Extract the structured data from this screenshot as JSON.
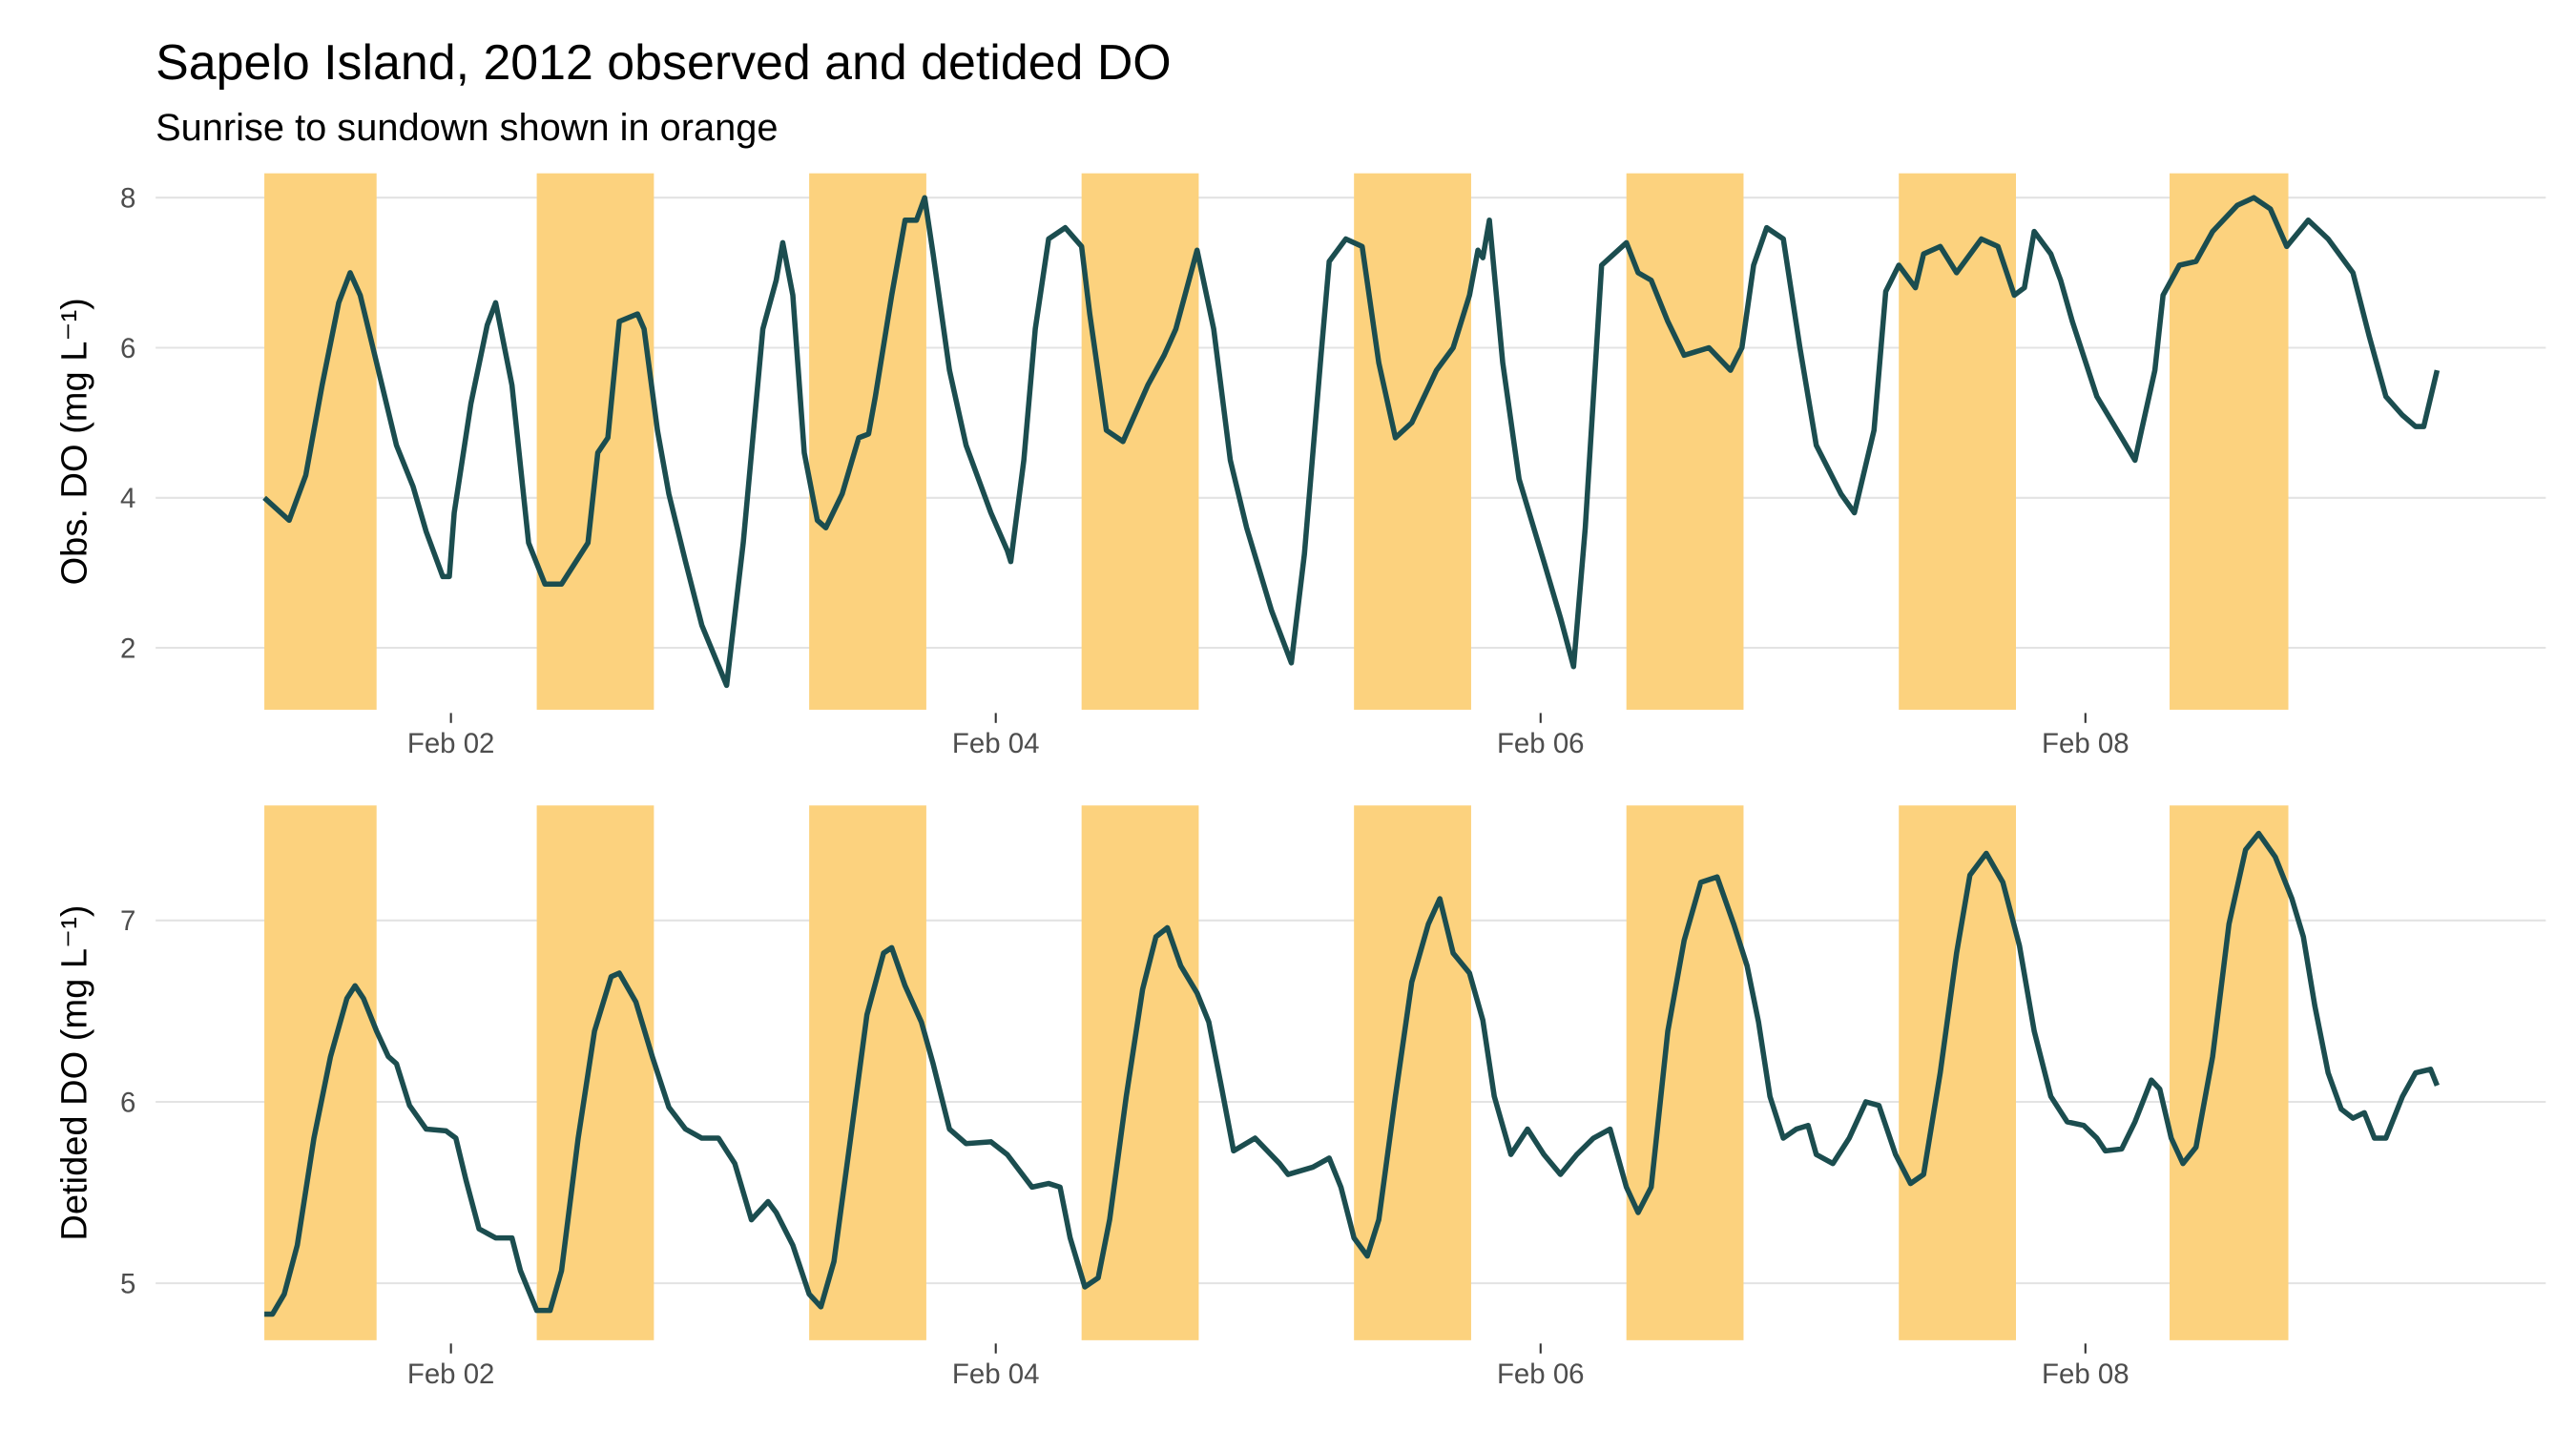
{
  "chart_data": [
    {
      "type": "line",
      "title": "Sapelo Island, 2012 observed and detided DO",
      "subtitle": "Sunrise to sundown shown in orange",
      "y_label": "Obs. DO (mg L⁻¹)",
      "xlim": [
        0.916,
        9.69
      ],
      "ylim": [
        1.175,
        8.325
      ],
      "xticks": [
        {
          "value": 2,
          "label": "Feb 02"
        },
        {
          "value": 4,
          "label": "Feb 04"
        },
        {
          "value": 6,
          "label": "Feb 06"
        },
        {
          "value": 8,
          "label": "Feb 08"
        }
      ],
      "yticks": [
        2,
        4,
        6,
        8
      ],
      "grid": true,
      "band_color": "#fcd27e",
      "bands": [
        [
          1.315,
          1.727
        ],
        [
          2.315,
          2.745
        ],
        [
          3.315,
          3.745
        ],
        [
          4.315,
          4.745
        ],
        [
          5.315,
          5.745
        ],
        [
          6.315,
          6.745
        ],
        [
          7.315,
          7.745
        ],
        [
          8.309,
          8.745
        ]
      ],
      "x": [
        1.315,
        1.406,
        1.467,
        1.527,
        1.588,
        1.63,
        1.667,
        1.727,
        1.8,
        1.861,
        1.909,
        1.97,
        1.994,
        2.012,
        2.073,
        2.133,
        2.164,
        2.224,
        2.285,
        2.345,
        2.406,
        2.503,
        2.539,
        2.576,
        2.618,
        2.685,
        2.709,
        2.758,
        2.8,
        2.861,
        2.921,
        3.012,
        3.073,
        3.145,
        3.194,
        3.218,
        3.255,
        3.297,
        3.345,
        3.376,
        3.436,
        3.497,
        3.533,
        3.558,
        3.618,
        3.667,
        3.709,
        3.739,
        3.77,
        3.83,
        3.891,
        3.982,
        4.042,
        4.055,
        4.103,
        4.145,
        4.194,
        4.255,
        4.315,
        4.345,
        4.406,
        4.467,
        4.558,
        4.618,
        4.661,
        4.739,
        4.8,
        4.861,
        4.921,
        5.012,
        5.085,
        5.133,
        5.194,
        5.224,
        5.285,
        5.345,
        5.406,
        5.467,
        5.527,
        5.618,
        5.679,
        5.739,
        5.77,
        5.788,
        5.812,
        5.861,
        5.921,
        6.012,
        6.073,
        6.121,
        6.164,
        6.224,
        6.315,
        6.358,
        6.406,
        6.467,
        6.527,
        6.618,
        6.697,
        6.739,
        6.782,
        6.83,
        6.891,
        6.952,
        7.012,
        7.103,
        7.152,
        7.224,
        7.267,
        7.315,
        7.376,
        7.406,
        7.467,
        7.527,
        7.618,
        7.679,
        7.739,
        7.776,
        7.812,
        7.873,
        7.909,
        7.952,
        8.042,
        8.133,
        8.182,
        8.206,
        8.255,
        8.285,
        8.345,
        8.406,
        8.467,
        8.558,
        8.618,
        8.679,
        8.739,
        8.818,
        8.891,
        8.982,
        9.042,
        9.103,
        9.164,
        9.212,
        9.242,
        9.291
      ],
      "series": [
        {
          "name": "Obs. DO",
          "color": "#1b4d4f",
          "values": [
            4.0,
            3.7,
            4.3,
            5.5,
            6.6,
            7.0,
            6.7,
            5.8,
            4.7,
            4.15,
            3.55,
            2.95,
            2.95,
            3.8,
            5.25,
            6.3,
            6.6,
            5.5,
            3.4,
            2.85,
            2.85,
            3.4,
            4.6,
            4.8,
            6.35,
            6.45,
            6.25,
            4.9,
            4.05,
            3.15,
            2.3,
            1.5,
            3.4,
            6.25,
            6.9,
            7.4,
            6.7,
            4.6,
            3.7,
            3.6,
            4.05,
            4.8,
            4.85,
            5.35,
            6.7,
            7.7,
            7.7,
            8.0,
            7.25,
            5.7,
            4.7,
            3.8,
            3.3,
            3.15,
            4.5,
            6.25,
            7.45,
            7.6,
            7.35,
            6.45,
            4.9,
            4.75,
            5.5,
            5.9,
            6.25,
            7.3,
            6.25,
            4.5,
            3.6,
            2.5,
            1.8,
            3.25,
            5.9,
            7.15,
            7.45,
            7.35,
            5.8,
            4.8,
            5.0,
            5.7,
            6.0,
            6.7,
            7.3,
            7.2,
            7.7,
            5.8,
            4.25,
            3.15,
            2.4,
            1.75,
            3.6,
            7.1,
            7.4,
            7.0,
            6.9,
            6.35,
            5.9,
            6.0,
            5.7,
            6.0,
            7.1,
            7.6,
            7.45,
            6.0,
            4.7,
            4.05,
            3.8,
            4.9,
            6.75,
            7.1,
            6.8,
            7.25,
            7.35,
            7.0,
            7.45,
            7.35,
            6.7,
            6.8,
            7.55,
            7.25,
            6.9,
            6.35,
            5.35,
            4.8,
            4.5,
            4.9,
            5.7,
            6.7,
            7.1,
            7.15,
            7.55,
            7.9,
            8.0,
            7.85,
            7.35,
            7.7,
            7.45,
            7.0,
            6.15,
            5.35,
            5.1,
            4.95,
            4.95,
            5.7
          ]
        }
      ]
    },
    {
      "type": "line",
      "y_label": "Detided DO (mg L⁻¹)",
      "xlim": [
        0.916,
        9.69
      ],
      "ylim": [
        4.686,
        7.634
      ],
      "xticks": [
        {
          "value": 2,
          "label": "Feb 02"
        },
        {
          "value": 4,
          "label": "Feb 04"
        },
        {
          "value": 6,
          "label": "Feb 06"
        },
        {
          "value": 8,
          "label": "Feb 08"
        }
      ],
      "yticks": [
        5,
        6,
        7
      ],
      "grid": true,
      "band_color": "#fcd27e",
      "bands": [
        [
          1.315,
          1.727
        ],
        [
          2.315,
          2.745
        ],
        [
          3.315,
          3.745
        ],
        [
          4.315,
          4.745
        ],
        [
          5.315,
          5.745
        ],
        [
          6.315,
          6.745
        ],
        [
          7.315,
          7.745
        ],
        [
          8.309,
          8.745
        ]
      ],
      "x": [
        1.315,
        1.345,
        1.388,
        1.436,
        1.497,
        1.558,
        1.618,
        1.648,
        1.679,
        1.727,
        1.77,
        1.8,
        1.848,
        1.909,
        1.982,
        2.018,
        2.055,
        2.103,
        2.164,
        2.224,
        2.255,
        2.315,
        2.364,
        2.406,
        2.467,
        2.527,
        2.588,
        2.618,
        2.679,
        2.739,
        2.8,
        2.861,
        2.921,
        2.982,
        3.042,
        3.103,
        3.164,
        3.194,
        3.255,
        3.315,
        3.358,
        3.406,
        3.467,
        3.527,
        3.588,
        3.618,
        3.667,
        3.727,
        3.77,
        3.83,
        3.891,
        3.982,
        4.042,
        4.133,
        4.194,
        4.236,
        4.273,
        4.327,
        4.376,
        4.418,
        4.479,
        4.539,
        4.588,
        4.63,
        4.679,
        4.739,
        4.782,
        4.83,
        4.873,
        4.952,
        5.042,
        5.073,
        5.164,
        5.224,
        5.267,
        5.315,
        5.364,
        5.406,
        5.467,
        5.527,
        5.588,
        5.63,
        5.679,
        5.739,
        5.788,
        5.83,
        5.891,
        5.952,
        6.012,
        6.073,
        6.133,
        6.194,
        6.255,
        6.315,
        6.358,
        6.406,
        6.467,
        6.527,
        6.588,
        6.648,
        6.709,
        6.758,
        6.8,
        6.842,
        6.891,
        6.939,
        6.982,
        7.012,
        7.073,
        7.133,
        7.194,
        7.242,
        7.303,
        7.358,
        7.406,
        7.467,
        7.527,
        7.576,
        7.636,
        7.697,
        7.758,
        7.812,
        7.873,
        7.933,
        7.994,
        8.042,
        8.073,
        8.133,
        8.182,
        8.242,
        8.273,
        8.315,
        8.358,
        8.406,
        8.467,
        8.527,
        8.588,
        8.636,
        8.697,
        8.758,
        8.8,
        8.842,
        8.891,
        8.939,
        8.982,
        9.024,
        9.061,
        9.103,
        9.164,
        9.212,
        9.267,
        9.291
      ],
      "series": [
        {
          "name": "Detided DO",
          "color": "#1b4d4f",
          "values": [
            4.83,
            4.83,
            4.94,
            5.21,
            5.8,
            6.25,
            6.57,
            6.64,
            6.57,
            6.39,
            6.25,
            6.21,
            5.98,
            5.85,
            5.84,
            5.8,
            5.57,
            5.3,
            5.25,
            5.25,
            5.07,
            4.85,
            4.85,
            5.07,
            5.8,
            6.39,
            6.69,
            6.71,
            6.55,
            6.25,
            5.97,
            5.85,
            5.8,
            5.8,
            5.66,
            5.35,
            5.45,
            5.39,
            5.21,
            4.94,
            4.87,
            5.12,
            5.8,
            6.48,
            6.82,
            6.85,
            6.64,
            6.44,
            6.21,
            5.85,
            5.77,
            5.78,
            5.71,
            5.53,
            5.55,
            5.53,
            5.25,
            4.98,
            5.03,
            5.35,
            6.03,
            6.62,
            6.91,
            6.96,
            6.75,
            6.6,
            6.44,
            6.07,
            5.73,
            5.8,
            5.66,
            5.6,
            5.64,
            5.69,
            5.53,
            5.25,
            5.15,
            5.35,
            6.03,
            6.66,
            6.98,
            7.12,
            6.82,
            6.71,
            6.45,
            6.03,
            5.71,
            5.85,
            5.71,
            5.6,
            5.71,
            5.8,
            5.85,
            5.53,
            5.39,
            5.53,
            6.39,
            6.89,
            7.21,
            7.24,
            6.98,
            6.75,
            6.44,
            6.03,
            5.8,
            5.85,
            5.87,
            5.71,
            5.66,
            5.8,
            6.0,
            5.98,
            5.71,
            5.55,
            5.6,
            6.16,
            6.82,
            7.25,
            7.37,
            7.21,
            6.86,
            6.39,
            6.03,
            5.89,
            5.87,
            5.8,
            5.73,
            5.74,
            5.89,
            6.12,
            6.07,
            5.8,
            5.66,
            5.75,
            6.25,
            6.98,
            7.39,
            7.48,
            7.35,
            7.12,
            6.91,
            6.53,
            6.16,
            5.96,
            5.91,
            5.94,
            5.8,
            5.8,
            6.03,
            6.16,
            6.18,
            6.09
          ]
        }
      ]
    }
  ]
}
